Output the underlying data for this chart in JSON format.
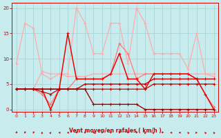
{
  "bg_color": "#c8ecee",
  "grid_color": "#a8d4d8",
  "xlabel": "Vent moyen/en rafales ( km/h )",
  "xlabel_color": "#cc0000",
  "tick_color": "#cc0000",
  "xlim": [
    -0.5,
    23.5
  ],
  "ylim": [
    -0.5,
    21
  ],
  "yticks": [
    0,
    5,
    10,
    15,
    20
  ],
  "xticks": [
    0,
    1,
    2,
    3,
    4,
    5,
    6,
    7,
    8,
    9,
    10,
    11,
    12,
    13,
    14,
    15,
    16,
    17,
    18,
    19,
    20,
    21,
    22,
    23
  ],
  "series": [
    {
      "color": "#ffaaaa",
      "linewidth": 0.9,
      "marker": "+",
      "markersize": 3,
      "x": [
        0,
        1,
        2,
        3,
        4,
        5,
        6,
        7,
        8,
        9,
        10,
        11,
        12,
        13,
        14,
        15,
        16,
        17,
        18,
        19,
        20,
        21,
        22,
        23
      ],
      "y": [
        9,
        17,
        16,
        7,
        6,
        7,
        7,
        20,
        17,
        11,
        11,
        17,
        17,
        9,
        20,
        17,
        11,
        11,
        11,
        11,
        8,
        15,
        7,
        6.5
      ]
    },
    {
      "color": "#ffaaaa",
      "linewidth": 0.9,
      "marker": "+",
      "markersize": 3,
      "x": [
        0,
        1,
        2,
        3,
        4,
        5,
        6,
        7,
        8,
        9,
        10,
        11,
        12,
        13,
        14,
        15,
        16,
        17,
        18,
        19,
        20,
        21,
        22,
        23
      ],
      "y": [
        4,
        4,
        4,
        7.5,
        7,
        7,
        6.5,
        6.5,
        6.5,
        7,
        7,
        7,
        7,
        7,
        7,
        7,
        7,
        7,
        7,
        7,
        7,
        7,
        7,
        7
      ]
    },
    {
      "color": "#ff7777",
      "linewidth": 0.9,
      "marker": "+",
      "markersize": 3,
      "x": [
        0,
        1,
        2,
        3,
        4,
        5,
        6,
        7,
        8,
        9,
        10,
        11,
        12,
        13,
        14,
        15,
        16,
        17,
        18,
        19,
        20,
        21,
        22,
        23
      ],
      "y": [
        4,
        4,
        4,
        3,
        1,
        4,
        4,
        6,
        6,
        6,
        6,
        7,
        13,
        11,
        6,
        7,
        7,
        7,
        7,
        7,
        7,
        6,
        3,
        0.5
      ]
    },
    {
      "color": "#ee0000",
      "linewidth": 1.1,
      "marker": "+",
      "markersize": 3.5,
      "x": [
        0,
        1,
        2,
        3,
        4,
        5,
        6,
        7,
        8,
        9,
        10,
        11,
        12,
        13,
        14,
        15,
        16,
        17,
        18,
        19,
        20,
        21,
        22,
        23
      ],
      "y": [
        4,
        4,
        4,
        4,
        0,
        4,
        15,
        6,
        6,
        6,
        6,
        7,
        11,
        6,
        6,
        4,
        7,
        7,
        7,
        7,
        7,
        6,
        3,
        0
      ]
    },
    {
      "color": "#cc0000",
      "linewidth": 1.0,
      "marker": "+",
      "markersize": 2.5,
      "x": [
        0,
        1,
        2,
        3,
        4,
        5,
        6,
        7,
        8,
        9,
        10,
        11,
        12,
        13,
        14,
        15,
        16,
        17,
        18,
        19,
        20,
        21,
        22,
        23
      ],
      "y": [
        4,
        4,
        4,
        4,
        4,
        4,
        4,
        4,
        5,
        5,
        5,
        5,
        5,
        5,
        5,
        5,
        6,
        6,
        6,
        6,
        6,
        6,
        6,
        6
      ]
    },
    {
      "color": "#cc0000",
      "linewidth": 0.9,
      "marker": "+",
      "markersize": 2.5,
      "x": [
        0,
        1,
        2,
        3,
        4,
        5,
        6,
        7,
        8,
        9,
        10,
        11,
        12,
        13,
        14,
        15,
        16,
        17,
        18,
        19,
        20,
        21,
        22,
        23
      ],
      "y": [
        4,
        4,
        4,
        3.5,
        3,
        4,
        4,
        4,
        4,
        4,
        4,
        4,
        4,
        4,
        4,
        4,
        5,
        5,
        5,
        5,
        5,
        5,
        5,
        5
      ]
    },
    {
      "color": "#990000",
      "linewidth": 1.0,
      "marker": "+",
      "markersize": 2.5,
      "x": [
        0,
        1,
        2,
        3,
        4,
        5,
        6,
        7,
        8,
        9,
        10,
        11,
        12,
        13,
        14,
        15,
        16,
        17,
        18,
        19,
        20,
        21,
        22,
        23
      ],
      "y": [
        4,
        4,
        4,
        4,
        4,
        4,
        4,
        4,
        4,
        1,
        1,
        1,
        1,
        1,
        1,
        0,
        0,
        0,
        0,
        0,
        0,
        0,
        0,
        0
      ]
    }
  ],
  "wind_angles": [
    225,
    210,
    210,
    0,
    45,
    270,
    270,
    225,
    180,
    225,
    210,
    180,
    210,
    225,
    210,
    0,
    45,
    225,
    270,
    270,
    315,
    90,
    315,
    315
  ]
}
